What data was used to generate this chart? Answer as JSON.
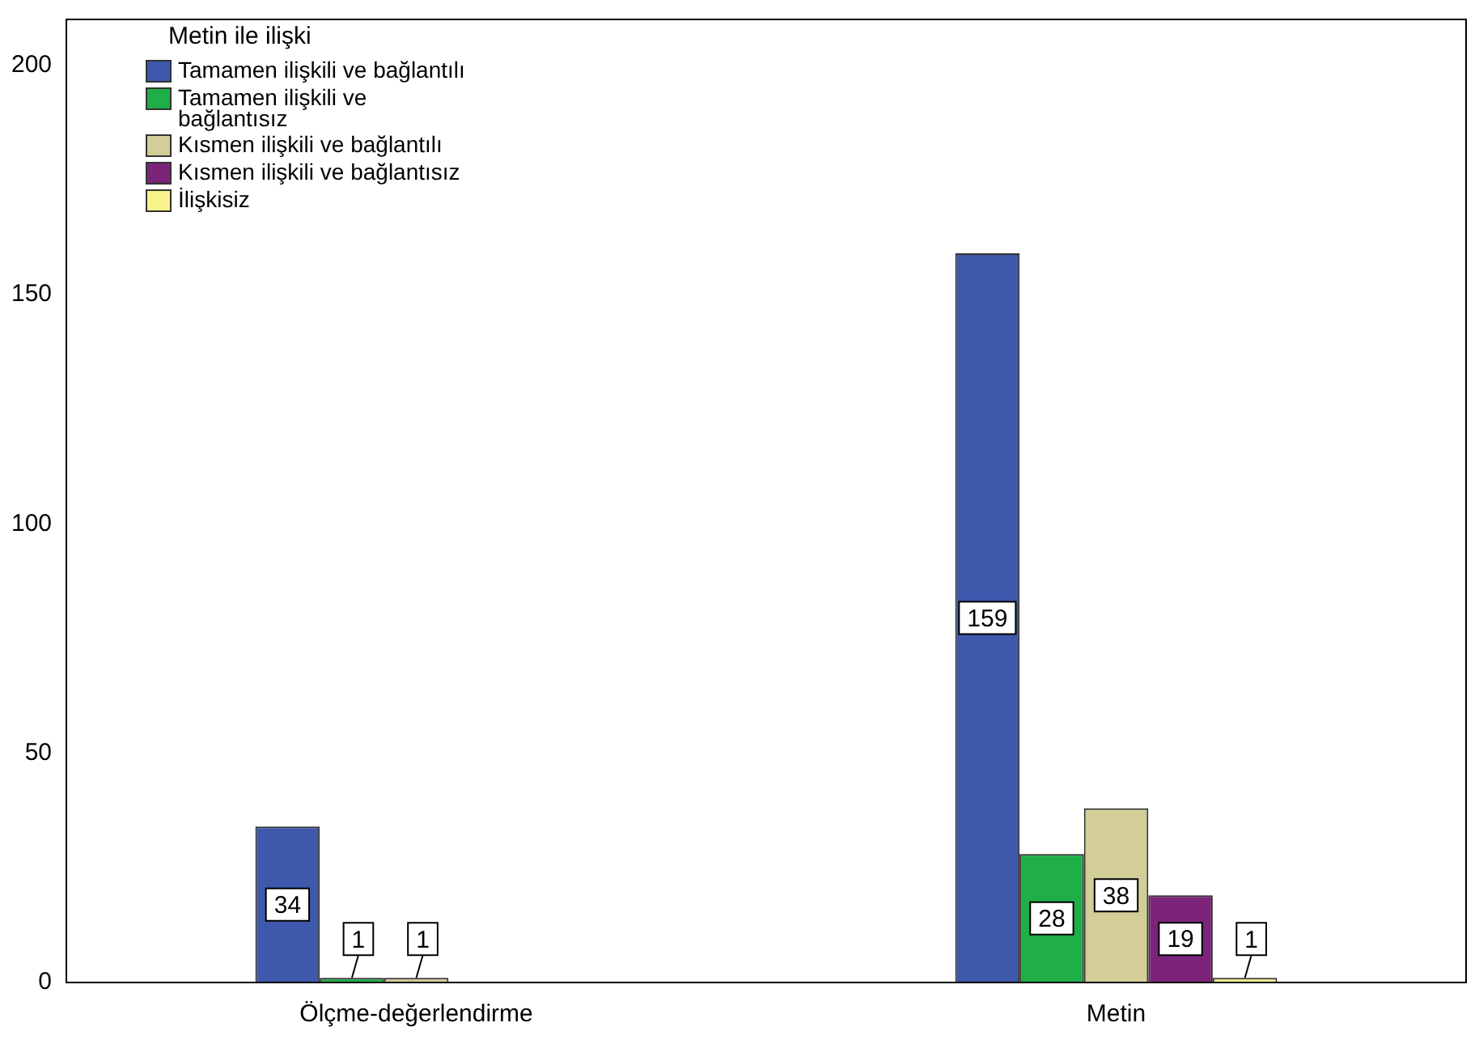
{
  "chart_data": {
    "type": "bar",
    "categories": [
      "Ölçme-değerlendirme",
      "Metin"
    ],
    "series": [
      {
        "name": "Tamamen ilişkili ve bağlantılı",
        "color": "#3e58ac",
        "values": [
          34,
          159
        ]
      },
      {
        "name": "Tamamen ilişkili ve bağlantısız",
        "color": "#1fae47",
        "values": [
          1,
          28
        ]
      },
      {
        "name": "Kısmen ilişkili ve bağlantılı",
        "color": "#d3ce97",
        "values": [
          1,
          38
        ]
      },
      {
        "name": "Kısmen ilişkili ve bağlantısız",
        "color": "#7b2479",
        "values": [
          null,
          19
        ]
      },
      {
        "name": "İlişkisiz",
        "color": "#f8f38b",
        "values": [
          null,
          1
        ]
      }
    ],
    "legend_title": "Metin ile ilişki",
    "legend": "top left",
    "data_labels": true,
    "grid": false,
    "ylim": [
      0,
      210
    ],
    "yticks": [
      0,
      50,
      100,
      150,
      200
    ]
  }
}
